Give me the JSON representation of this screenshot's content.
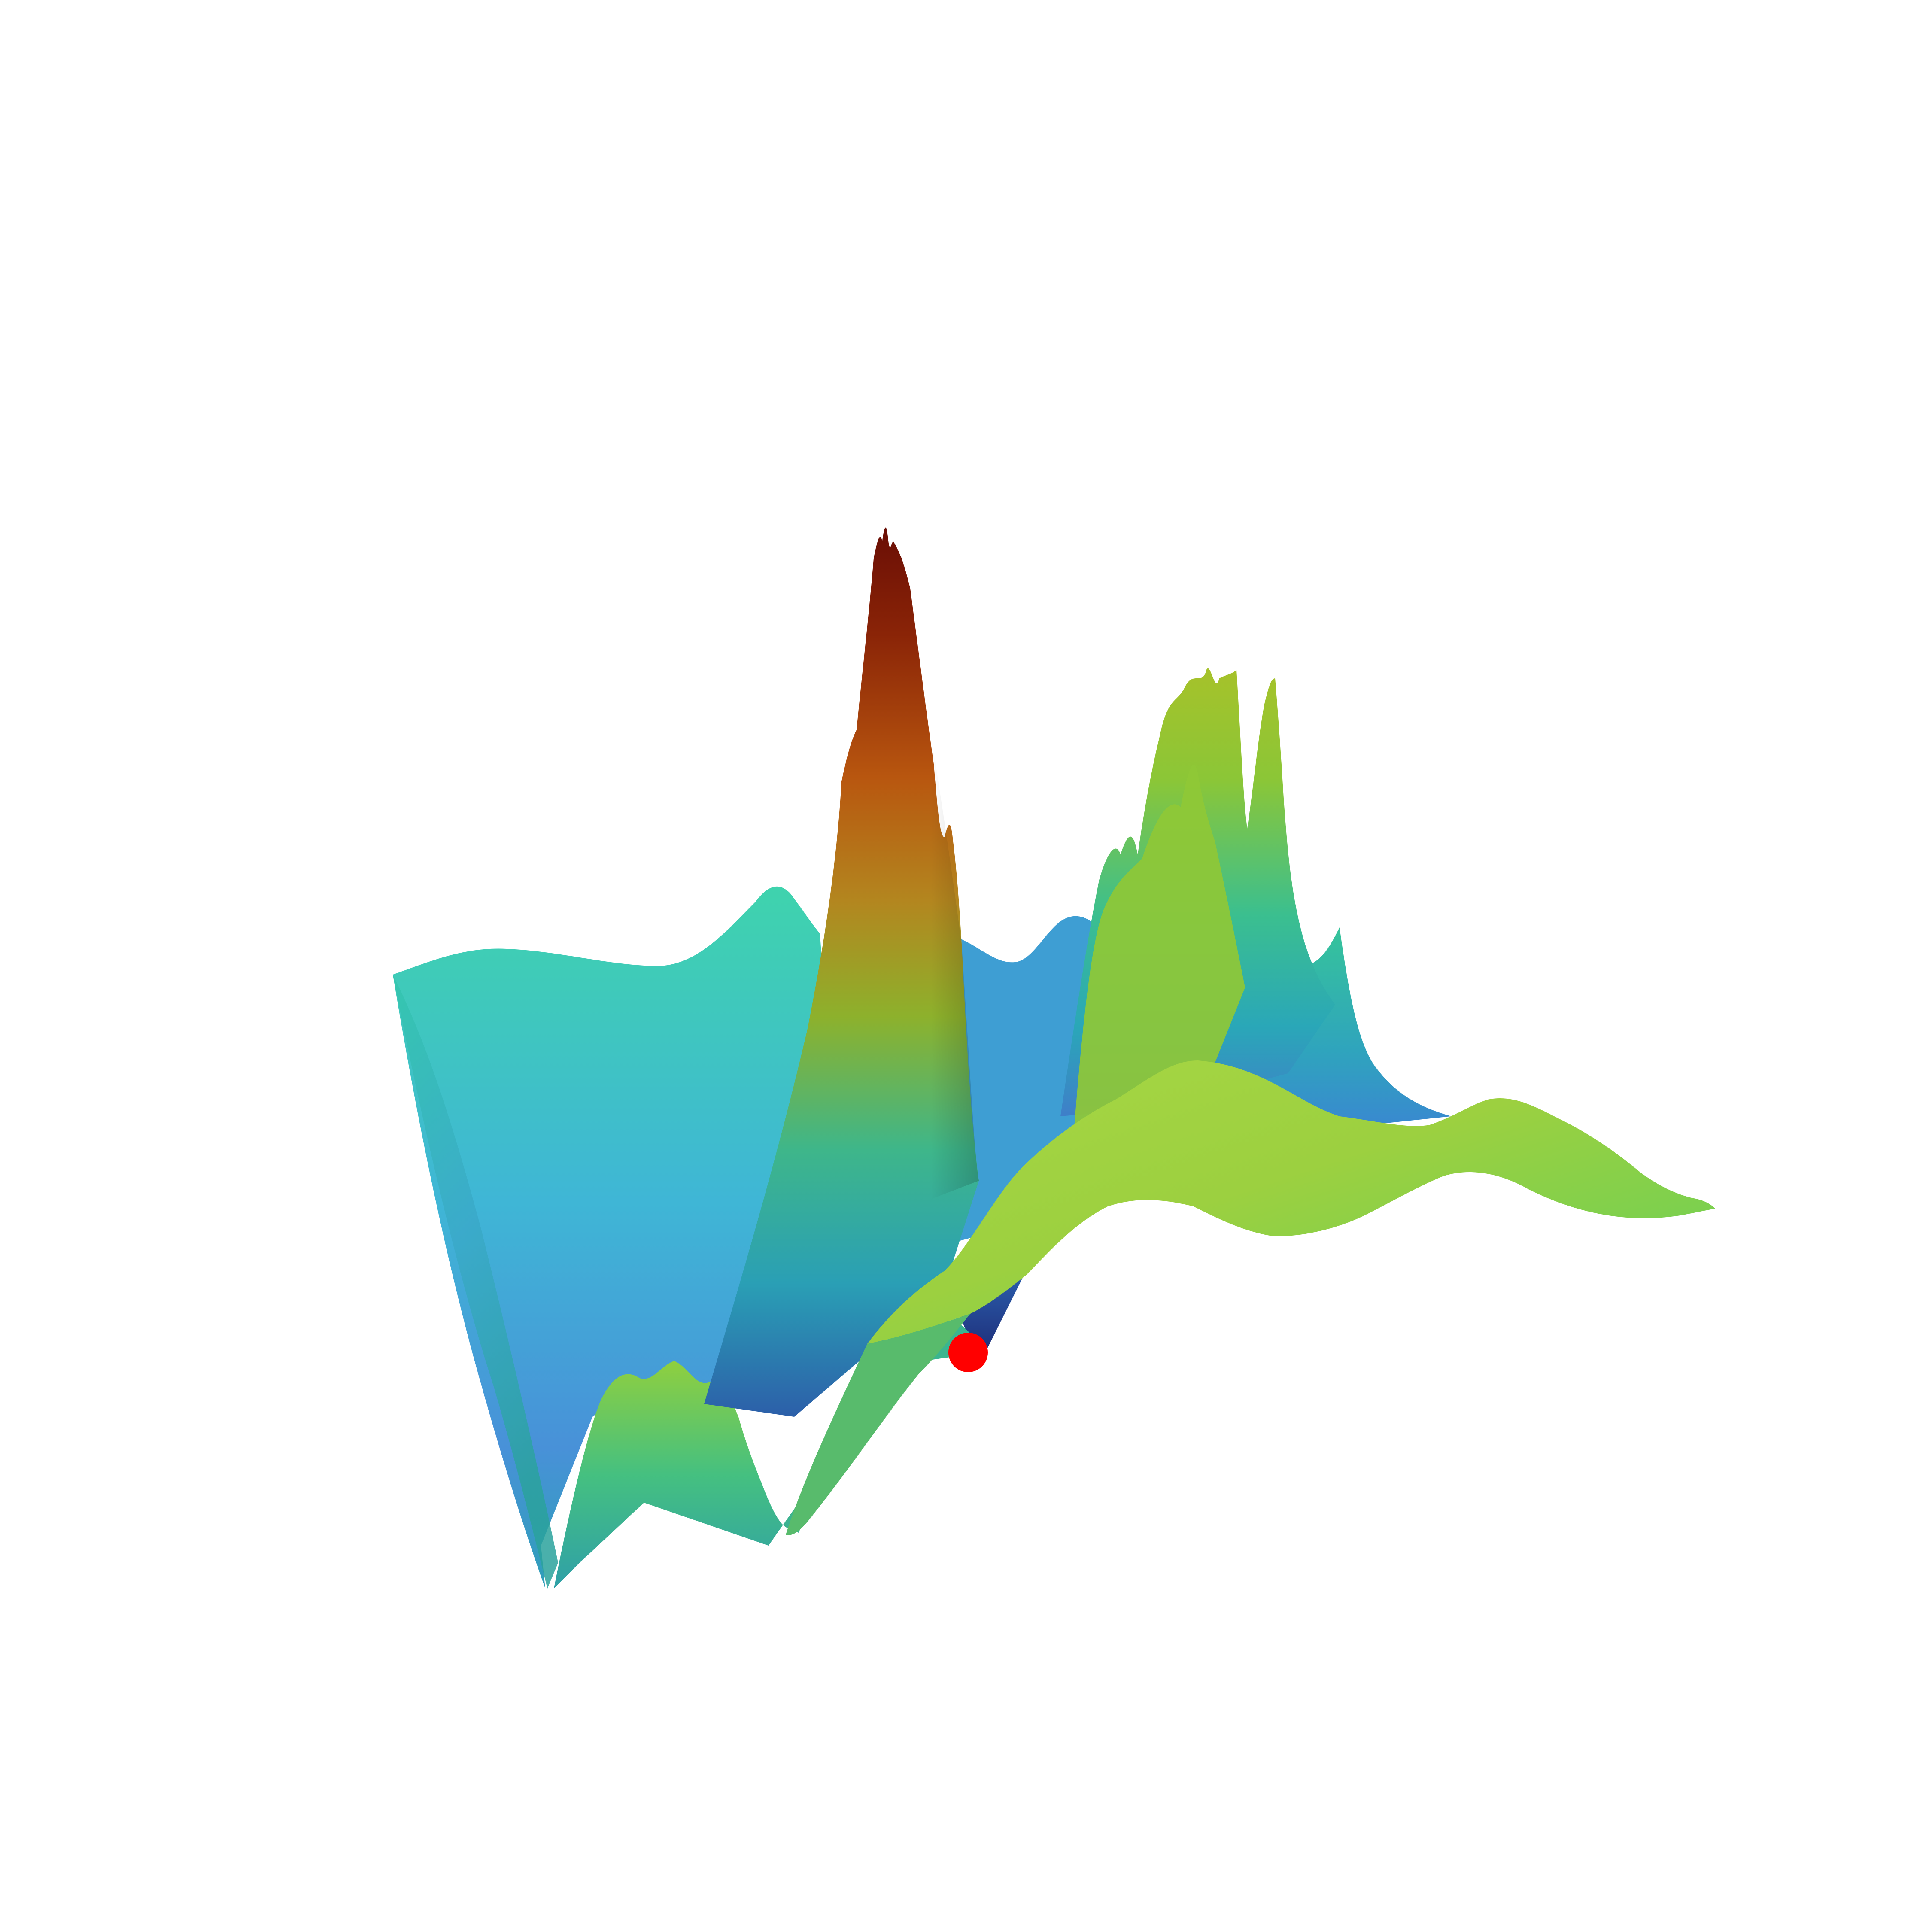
{
  "chart_data": {
    "type": "surface3d",
    "title": "",
    "xlabel": "",
    "ylabel": "",
    "zlabel": "",
    "axes_visible": false,
    "grid": false,
    "legend": "none",
    "colormap": "turbo",
    "colormap_stops": [
      "#30123b",
      "#3e62cf",
      "#28bbec",
      "#32f298",
      "#a4fc3c",
      "#eecf3a",
      "#fb8022",
      "#d23105",
      "#7a0403"
    ],
    "background": "#ffffff",
    "marker": {
      "name": "minimum-point",
      "color": "#ff0000"
    },
    "profile_peaks": [
      {
        "name": "main-peak",
        "z": 1.0
      },
      {
        "name": "right-peak-1",
        "z": 0.78
      },
      {
        "name": "right-peak-2",
        "z": 0.75
      },
      {
        "name": "back-left-ridge",
        "z": 0.46
      },
      {
        "name": "front-ridge",
        "z": 0.43
      },
      {
        "name": "far-right-ridge",
        "z": 0.39
      }
    ],
    "z_range": [
      0,
      1
    ]
  }
}
